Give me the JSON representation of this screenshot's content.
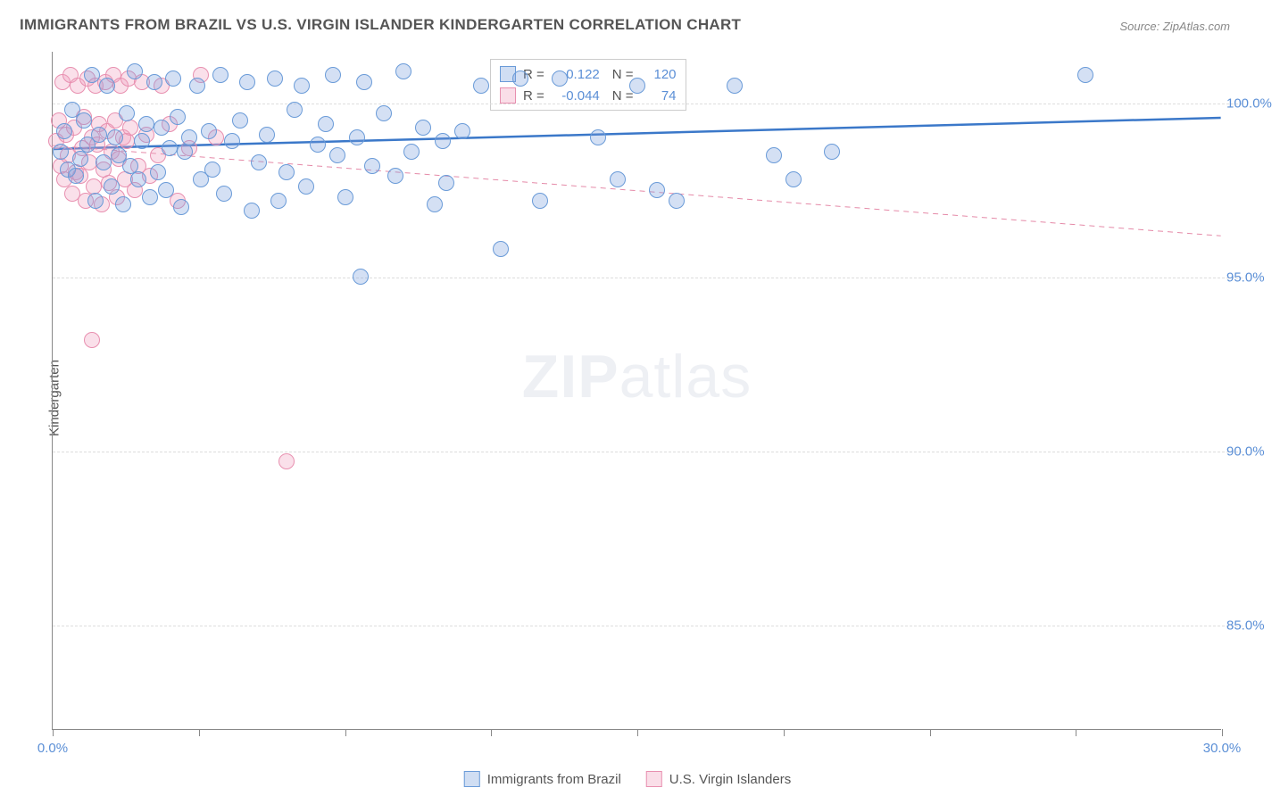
{
  "title": "IMMIGRANTS FROM BRAZIL VS U.S. VIRGIN ISLANDER KINDERGARTEN CORRELATION CHART",
  "source": "Source: ZipAtlas.com",
  "ylabel": "Kindergarten",
  "watermark_bold": "ZIP",
  "watermark_rest": "atlas",
  "chart": {
    "type": "scatter",
    "xlim": [
      0,
      30
    ],
    "ylim": [
      82,
      101.5
    ],
    "xticks": [
      0,
      3.75,
      7.5,
      11.25,
      15,
      18.75,
      22.5,
      26.25,
      30
    ],
    "xtick_labels": {
      "0": "0.0%",
      "30": "30.0%"
    },
    "yticks": [
      85,
      90,
      95,
      100
    ],
    "ytick_labels": [
      "85.0%",
      "90.0%",
      "95.0%",
      "100.0%"
    ],
    "grid_color": "#dddddd",
    "background_color": "#ffffff",
    "marker_radius": 9,
    "series": [
      {
        "name": "Immigrants from Brazil",
        "fill": "rgba(120,160,220,0.32)",
        "stroke": "#6a9bd8",
        "R": "0.122",
        "N": "120",
        "trend": {
          "y_at_x0": 98.7,
          "y_at_xmax": 99.6,
          "stroke": "#3b78c9",
          "width": 2.5,
          "dash": "none"
        },
        "points": [
          [
            0.2,
            98.6
          ],
          [
            0.3,
            99.2
          ],
          [
            0.4,
            98.1
          ],
          [
            0.5,
            99.8
          ],
          [
            0.6,
            97.9
          ],
          [
            0.7,
            98.4
          ],
          [
            0.8,
            99.5
          ],
          [
            0.9,
            98.8
          ],
          [
            1.0,
            100.8
          ],
          [
            1.1,
            97.2
          ],
          [
            1.2,
            99.1
          ],
          [
            1.3,
            98.3
          ],
          [
            1.4,
            100.5
          ],
          [
            1.5,
            97.6
          ],
          [
            1.6,
            99.0
          ],
          [
            1.7,
            98.5
          ],
          [
            1.8,
            97.1
          ],
          [
            1.9,
            99.7
          ],
          [
            2.0,
            98.2
          ],
          [
            2.1,
            100.9
          ],
          [
            2.2,
            97.8
          ],
          [
            2.3,
            98.9
          ],
          [
            2.4,
            99.4
          ],
          [
            2.5,
            97.3
          ],
          [
            2.6,
            100.6
          ],
          [
            2.7,
            98.0
          ],
          [
            2.8,
            99.3
          ],
          [
            2.9,
            97.5
          ],
          [
            3.0,
            98.7
          ],
          [
            3.1,
            100.7
          ],
          [
            3.2,
            99.6
          ],
          [
            3.3,
            97.0
          ],
          [
            3.4,
            98.6
          ],
          [
            3.5,
            99.0
          ],
          [
            3.7,
            100.5
          ],
          [
            3.8,
            97.8
          ],
          [
            4.0,
            99.2
          ],
          [
            4.1,
            98.1
          ],
          [
            4.3,
            100.8
          ],
          [
            4.4,
            97.4
          ],
          [
            4.6,
            98.9
          ],
          [
            4.8,
            99.5
          ],
          [
            5.0,
            100.6
          ],
          [
            5.1,
            96.9
          ],
          [
            5.3,
            98.3
          ],
          [
            5.5,
            99.1
          ],
          [
            5.7,
            100.7
          ],
          [
            5.8,
            97.2
          ],
          [
            6.0,
            98.0
          ],
          [
            6.2,
            99.8
          ],
          [
            6.4,
            100.5
          ],
          [
            6.5,
            97.6
          ],
          [
            6.8,
            98.8
          ],
          [
            7.0,
            99.4
          ],
          [
            7.2,
            100.8
          ],
          [
            7.3,
            98.5
          ],
          [
            7.5,
            97.3
          ],
          [
            7.8,
            99.0
          ],
          [
            7.9,
            95.0
          ],
          [
            8.0,
            100.6
          ],
          [
            8.2,
            98.2
          ],
          [
            8.5,
            99.7
          ],
          [
            8.8,
            97.9
          ],
          [
            9.0,
            100.9
          ],
          [
            9.2,
            98.6
          ],
          [
            9.5,
            99.3
          ],
          [
            9.8,
            97.1
          ],
          [
            10.0,
            98.9
          ],
          [
            10.1,
            97.7
          ],
          [
            10.5,
            99.2
          ],
          [
            11.0,
            100.5
          ],
          [
            11.5,
            95.8
          ],
          [
            12.0,
            100.7
          ],
          [
            12.5,
            97.2
          ],
          [
            13.0,
            100.7
          ],
          [
            14.0,
            99.0
          ],
          [
            14.5,
            97.8
          ],
          [
            15.0,
            100.5
          ],
          [
            15.5,
            97.5
          ],
          [
            16.0,
            97.2
          ],
          [
            17.5,
            100.5
          ],
          [
            18.5,
            98.5
          ],
          [
            19.0,
            97.8
          ],
          [
            20.0,
            98.6
          ],
          [
            26.5,
            100.8
          ]
        ]
      },
      {
        "name": "U.S. Virgin Islanders",
        "fill": "rgba(240,160,190,0.33)",
        "stroke": "#e890b0",
        "R": "-0.044",
        "N": "74",
        "trend": {
          "y_at_x0": 98.8,
          "y_at_xmax": 96.2,
          "stroke": "#e58aa8",
          "width": 1,
          "dash": "6,5"
        },
        "points": [
          [
            0.1,
            98.9
          ],
          [
            0.15,
            99.5
          ],
          [
            0.2,
            98.2
          ],
          [
            0.25,
            100.6
          ],
          [
            0.3,
            97.8
          ],
          [
            0.35,
            99.1
          ],
          [
            0.4,
            98.5
          ],
          [
            0.45,
            100.8
          ],
          [
            0.5,
            97.4
          ],
          [
            0.55,
            99.3
          ],
          [
            0.6,
            98.0
          ],
          [
            0.65,
            100.5
          ],
          [
            0.7,
            97.9
          ],
          [
            0.75,
            98.7
          ],
          [
            0.8,
            99.6
          ],
          [
            0.85,
            97.2
          ],
          [
            0.9,
            100.7
          ],
          [
            0.95,
            98.3
          ],
          [
            1.0,
            99.0
          ],
          [
            1.05,
            97.6
          ],
          [
            1.1,
            100.5
          ],
          [
            1.15,
            98.8
          ],
          [
            1.2,
            99.4
          ],
          [
            1.25,
            97.1
          ],
          [
            1.3,
            98.1
          ],
          [
            1.35,
            100.6
          ],
          [
            1.4,
            99.2
          ],
          [
            1.45,
            97.7
          ],
          [
            1.5,
            98.6
          ],
          [
            1.55,
            100.8
          ],
          [
            1.6,
            99.5
          ],
          [
            1.65,
            97.3
          ],
          [
            1.7,
            98.4
          ],
          [
            1.75,
            100.5
          ],
          [
            1.8,
            99.0
          ],
          [
            1.85,
            97.8
          ],
          [
            1.9,
            98.9
          ],
          [
            1.95,
            100.7
          ],
          [
            2.0,
            99.3
          ],
          [
            2.1,
            97.5
          ],
          [
            2.2,
            98.2
          ],
          [
            2.3,
            100.6
          ],
          [
            2.4,
            99.1
          ],
          [
            2.5,
            97.9
          ],
          [
            2.7,
            98.5
          ],
          [
            2.8,
            100.5
          ],
          [
            3.0,
            99.4
          ],
          [
            3.2,
            97.2
          ],
          [
            3.5,
            98.7
          ],
          [
            3.8,
            100.8
          ],
          [
            4.2,
            99.0
          ],
          [
            1.0,
            93.2
          ],
          [
            6.0,
            89.7
          ]
        ]
      }
    ]
  },
  "stats_box": {
    "rows": [
      {
        "swatch_fill": "rgba(120,160,220,0.35)",
        "swatch_stroke": "#6a9bd8",
        "r_label": "R =",
        "r_val": "0.122",
        "n_label": "N =",
        "n_val": "120"
      },
      {
        "swatch_fill": "rgba(240,160,190,0.35)",
        "swatch_stroke": "#e890b0",
        "r_label": "R =",
        "r_val": "-0.044",
        "n_label": "N =",
        "n_val": "74"
      }
    ]
  },
  "legend": [
    {
      "fill": "rgba(120,160,220,0.35)",
      "stroke": "#6a9bd8",
      "label": "Immigrants from Brazil"
    },
    {
      "fill": "rgba(240,160,190,0.35)",
      "stroke": "#e890b0",
      "label": "U.S. Virgin Islanders"
    }
  ]
}
